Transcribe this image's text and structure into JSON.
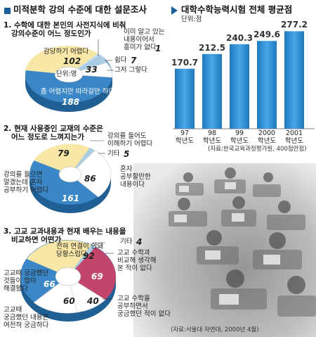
{
  "left_title": "미적분학 강의 수준에 대한 설문조사",
  "right_title": "대학수학능력시험 전체 평균점",
  "q1": {
    "question": "1. 수학에 대한 본인의 사전지식에 비춰\n   강의수준이 어느 정도인가",
    "unit": "단위:명",
    "slices": [
      {
        "label": "감당하기 어렵다",
        "value": 102,
        "color": "#f8e7a6"
      },
      {
        "label": "이미 알고 있는\n내용이어서\n흥미가 없다",
        "value": 1,
        "color": "#c9e0ee"
      },
      {
        "label": "쉽다",
        "value": 7,
        "color": "#a9cde4"
      },
      {
        "label": "그저 그렇다",
        "value": 33,
        "color": "#ffffff"
      },
      {
        "label": "좀 어렵지만 따라갈만 하다",
        "value": 188,
        "color": "#3b86c6"
      }
    ]
  },
  "q2": {
    "question": "2. 현재 사용중인 교재의 수준은\n   어느 정도로 느껴지는가",
    "slices": [
      {
        "label": "강의를 들어도\n이해하기 어렵다",
        "value": 79,
        "color": "#f8e7a6"
      },
      {
        "label": "기타",
        "value": 5,
        "color": "#a9cde4"
      },
      {
        "label": "혼자\n공부할만한\n내용이다",
        "value": 86,
        "color": "#ffffff"
      },
      {
        "label": "강의를 들으면\n알겠는데 혼자\n공부하기 어렵다",
        "value": 161,
        "color": "#3b86c6"
      }
    ]
  },
  "q3": {
    "question": "3. 고교 교과내용과 현재 배우는 내용을\n   비교하면 어떤가",
    "slices": [
      {
        "label": "전혀 연결이 안돼\n당황스럽다",
        "value": 92,
        "color": "#f8e7a6"
      },
      {
        "label": "기타",
        "value": 4,
        "color": "#a9cde4"
      },
      {
        "label": "고교 수학과\n비교해 생각해\n본 적이 없다",
        "value": 69,
        "color": "#c2456b"
      },
      {
        "label": "고교 수학을\n공부하면서\n궁금했던 적이 없다",
        "value": 40,
        "color": "#ffffff"
      },
      {
        "label": "고교때\n궁금했던 내용은\n여전히 궁금하다",
        "value": 60,
        "color": "#ffffff"
      },
      {
        "label": "고교때 궁금했던\n것들이 많이\n해결됐다",
        "value": 66,
        "color": "#3b86c6"
      }
    ],
    "source": "(자료:서울대 자연대, 2000년 4월)"
  },
  "chart_data": {
    "type": "bar",
    "title": "대학수학능력시험 전체 평균점",
    "ylabel": "단위:점",
    "categories": [
      "97\n학년도",
      "98\n학년도",
      "99\n학년도",
      "2000\n학년도",
      "2001\n학년도"
    ],
    "values": [
      170.7,
      212.5,
      240.3,
      249.6,
      277.2
    ],
    "value_labels": [
      "170.7",
      "212.5",
      "240.3",
      "249.6",
      "277.2"
    ],
    "bar_color": "#2b8fd4",
    "source": "(자료:한국교육과정평가원, 400점만점)"
  }
}
